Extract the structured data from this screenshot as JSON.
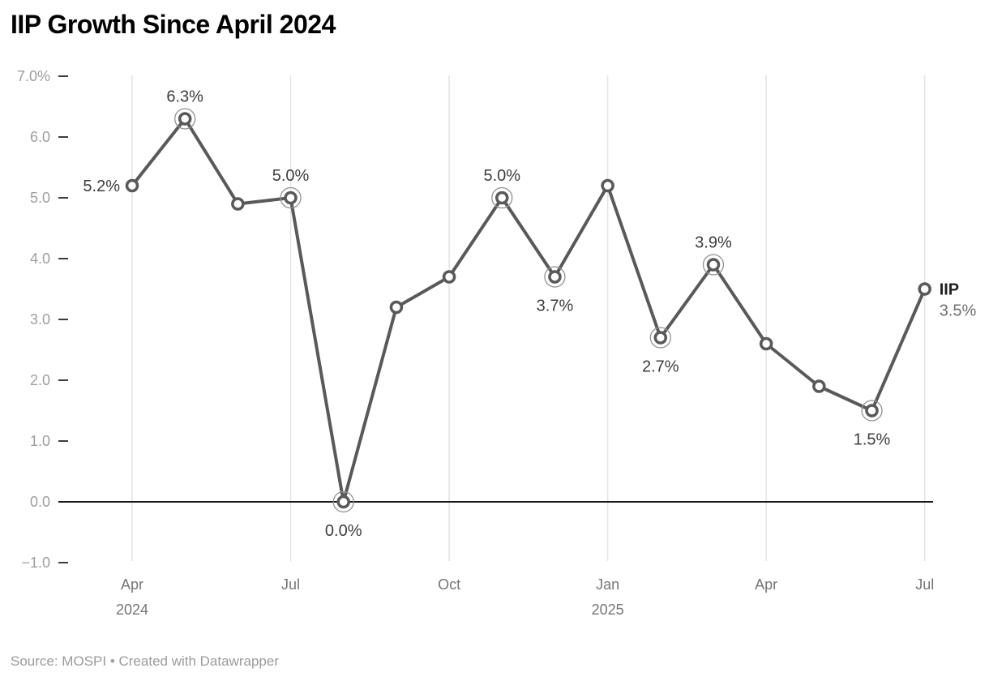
{
  "title": "IIP Growth Since April 2024",
  "footer": "Source: MOSPI • Created with Datawrapper",
  "colors": {
    "title": "#000000",
    "line": "#595959",
    "marker_fill": "#ffffff",
    "marker_stroke": "#595959",
    "highlight_ring": "#909090",
    "grid": "#e4e4e4",
    "zero_line": "#1a1a1a",
    "y_tick": "#3d3d3d",
    "y_label": "#9e9e9e",
    "x_label": "#757575",
    "value_label": "#3d3d3d",
    "series_label": "#1f1f1f",
    "series_value": "#6f6f6f",
    "footer": "#9b9b9b"
  },
  "chart_data": {
    "type": "line",
    "title": "IIP Growth Since April 2024",
    "series_name": "IIP",
    "x": [
      "Apr 2024",
      "May 2024",
      "Jun 2024",
      "Jul 2024",
      "Aug 2024",
      "Sep 2024",
      "Oct 2024",
      "Nov 2024",
      "Dec 2024",
      "Jan 2025",
      "Feb 2025",
      "Mar 2025",
      "Apr 2025",
      "May 2025",
      "Jun 2025",
      "Jul 2025"
    ],
    "values": [
      5.2,
      6.3,
      4.9,
      5.0,
      0.0,
      3.2,
      3.7,
      5.0,
      3.7,
      5.2,
      2.7,
      3.9,
      2.6,
      1.9,
      1.5,
      3.5
    ],
    "unit": "%",
    "ylim": [
      -1.0,
      7.0
    ],
    "grid": "vertical-only",
    "yticks": [
      {
        "v": 7,
        "label": "7.0%"
      },
      {
        "v": 6,
        "label": "6.0"
      },
      {
        "v": 5,
        "label": "5.0"
      },
      {
        "v": 4,
        "label": "4.0"
      },
      {
        "v": 3,
        "label": "3.0"
      },
      {
        "v": 2,
        "label": "2.0"
      },
      {
        "v": 1,
        "label": "1.0"
      },
      {
        "v": 0,
        "label": "0.0"
      },
      {
        "v": -1,
        "label": "−1.0"
      }
    ],
    "xticks": [
      {
        "i": 0,
        "month": "Apr",
        "year": "2024"
      },
      {
        "i": 3,
        "month": "Jul",
        "year": ""
      },
      {
        "i": 6,
        "month": "Oct",
        "year": ""
      },
      {
        "i": 9,
        "month": "Jan",
        "year": "2025"
      },
      {
        "i": 12,
        "month": "Apr",
        "year": ""
      },
      {
        "i": 15,
        "month": "Jul",
        "year": ""
      }
    ],
    "highlighted_points": [
      1,
      3,
      4,
      7,
      8,
      10,
      11,
      14
    ],
    "point_labels": [
      {
        "i": 0,
        "text": "5.2%",
        "pos": "left"
      },
      {
        "i": 1,
        "text": "6.3%",
        "pos": "top"
      },
      {
        "i": 3,
        "text": "5.0%",
        "pos": "top"
      },
      {
        "i": 4,
        "text": "0.0%",
        "pos": "bottom"
      },
      {
        "i": 7,
        "text": "5.0%",
        "pos": "top"
      },
      {
        "i": 8,
        "text": "3.7%",
        "pos": "bottom"
      },
      {
        "i": 10,
        "text": "2.7%",
        "pos": "bottom"
      },
      {
        "i": 11,
        "text": "3.9%",
        "pos": "top"
      },
      {
        "i": 14,
        "text": "1.5%",
        "pos": "bottom"
      }
    ],
    "end_label": {
      "name": "IIP",
      "value": "3.5%"
    },
    "legend_position": "end-of-line"
  }
}
